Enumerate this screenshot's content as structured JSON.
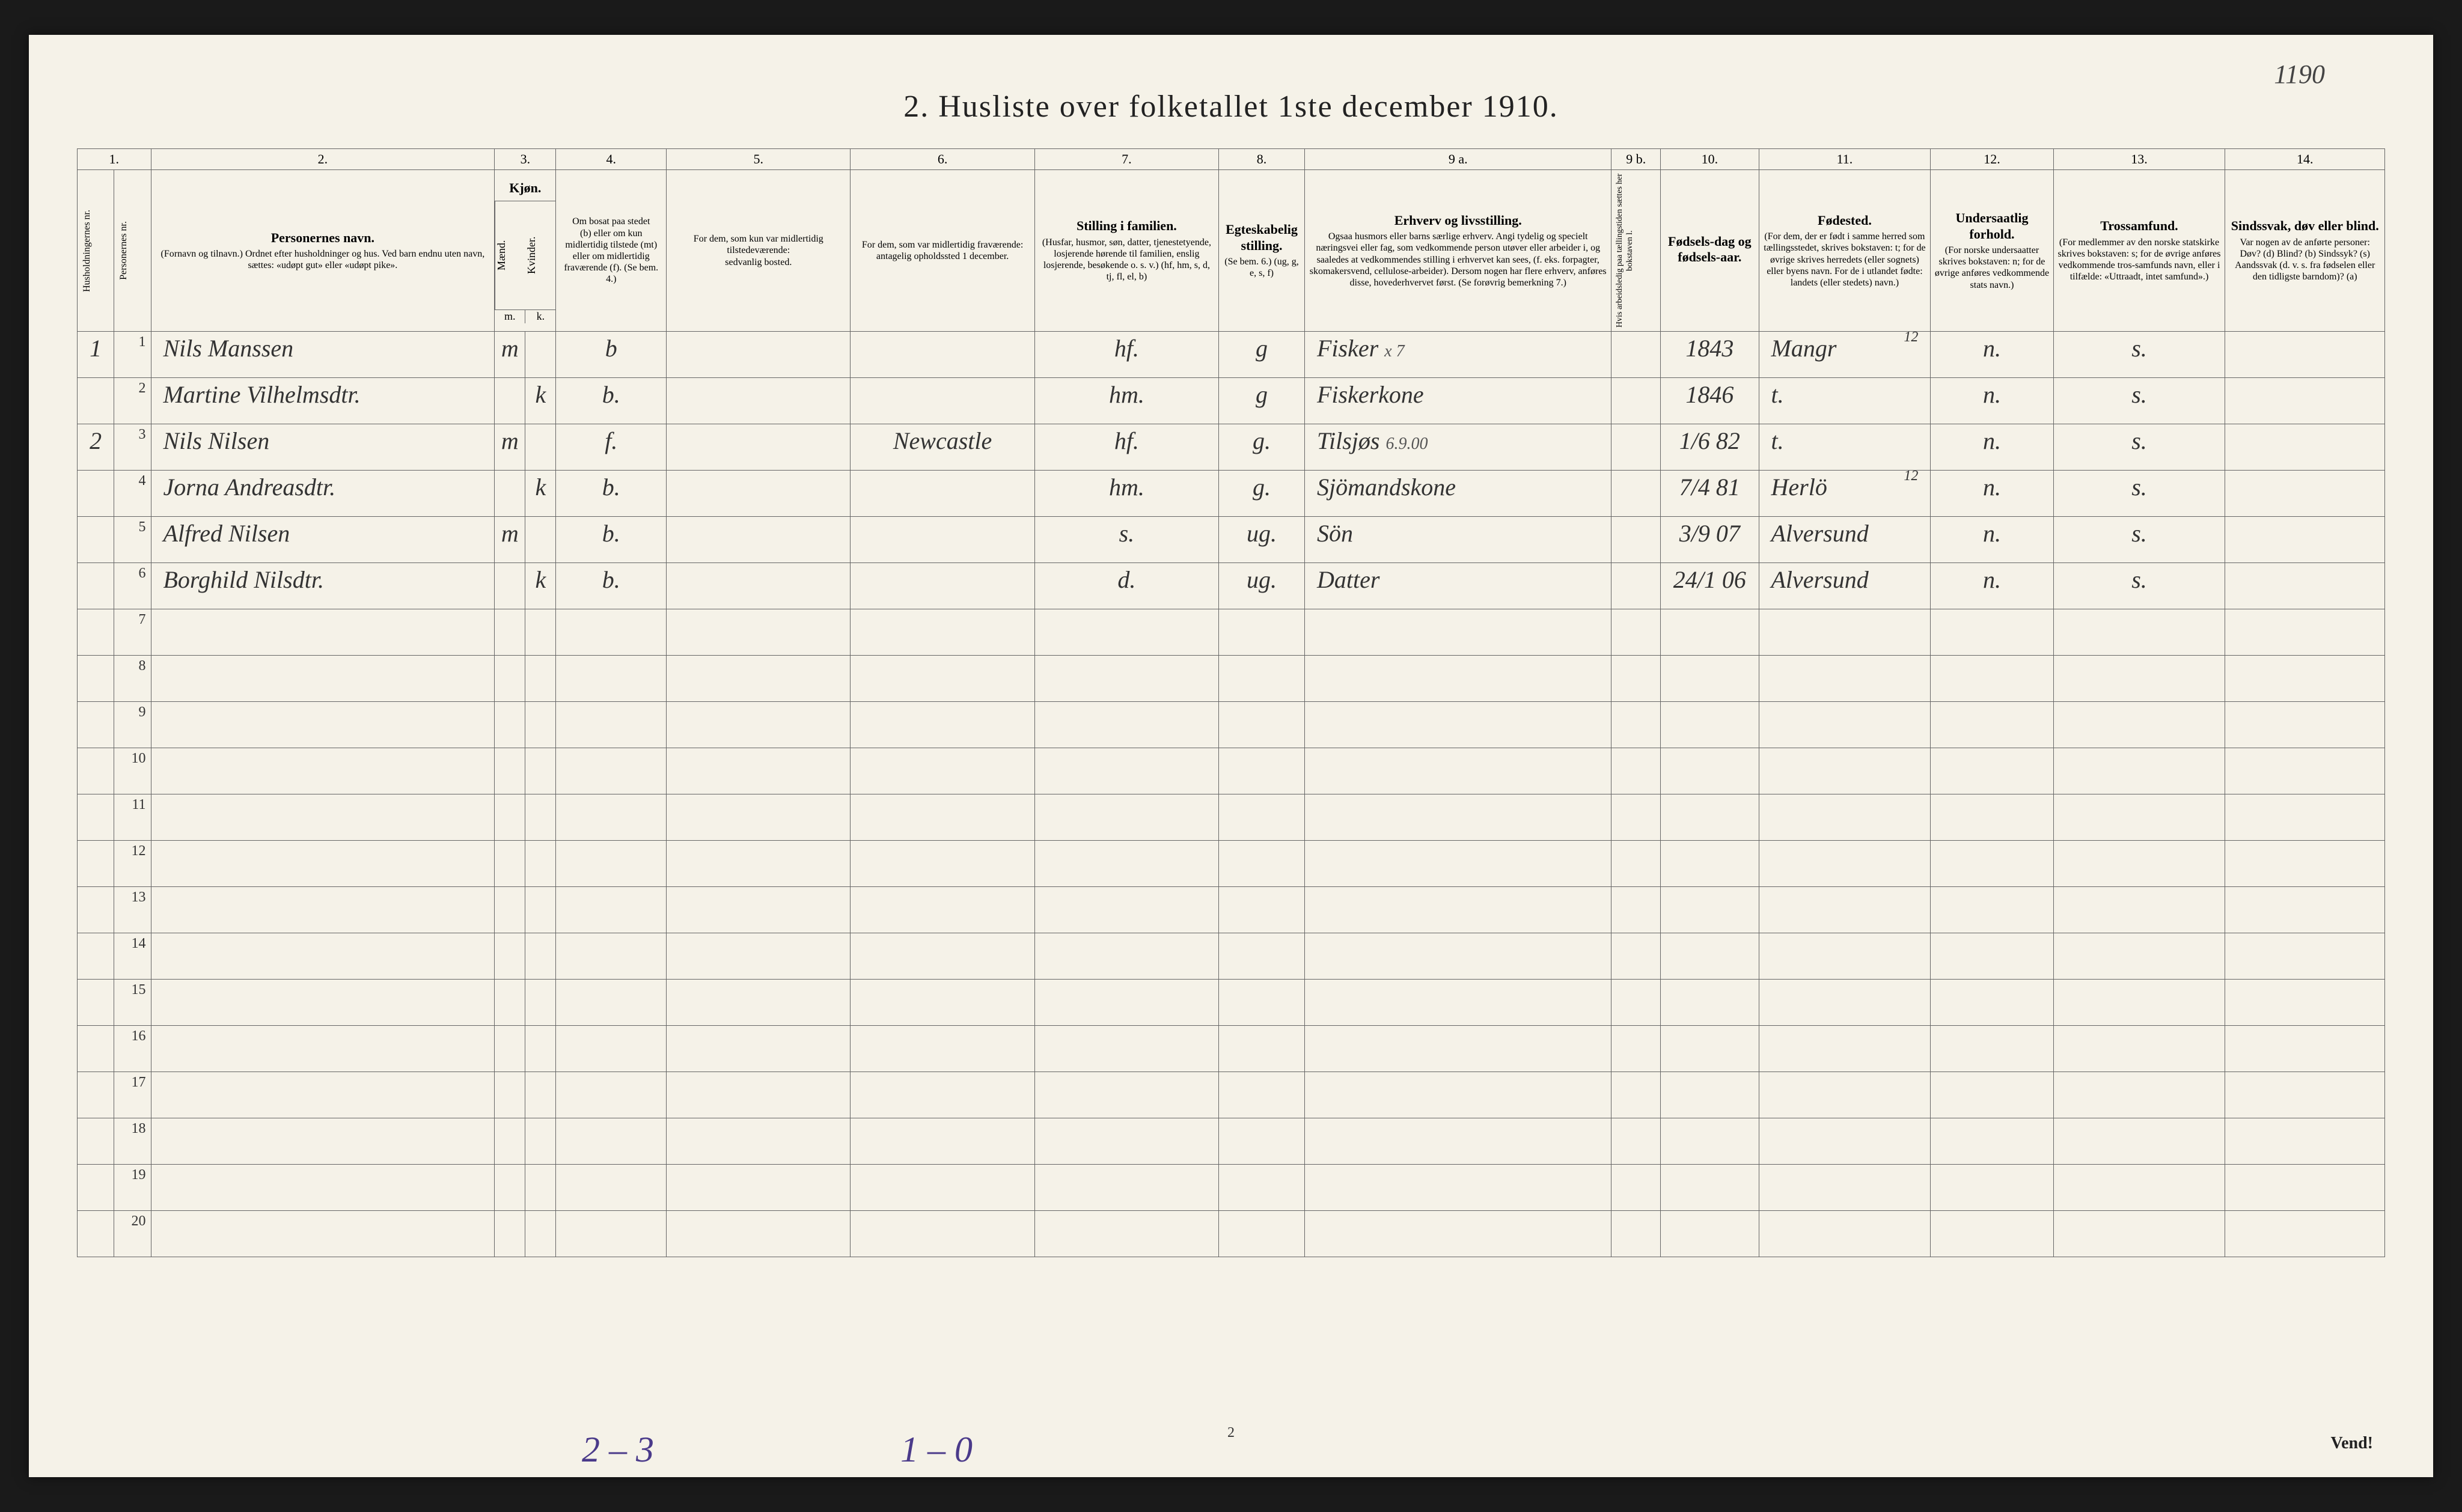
{
  "page_annotation_top_right": "1190",
  "title": "2.  Husliste over folketallet 1ste december 1910.",
  "column_numbers": [
    "1.",
    "",
    "2.",
    "3.",
    "4.",
    "5.",
    "6.",
    "7.",
    "8.",
    "9 a.",
    "9 b.",
    "10.",
    "11.",
    "12.",
    "13.",
    "14."
  ],
  "headers": {
    "c1": "Husholdningernes nr.",
    "c2": "Personernes nr.",
    "c3_main": "Personernes navn.",
    "c3_sub": "(Fornavn og tilnavn.)\nOrdnet efter husholdninger og hus.\nVed barn endnu uten navn, sættes: «udøpt gut» eller «udøpt pike».",
    "c4_main": "Kjøn.",
    "c4_sub": "Mænd. Kvinder.",
    "c4_mk": "m.  k.",
    "c5_main": "Om bosat paa stedet",
    "c5_sub": "(b) eller om kun midlertidig tilstede (mt) eller om midlertidig fraværende (f). (Se bem. 4.)",
    "c6_main": "For dem, som kun var midlertidig tilstedeværende:",
    "c6_sub": "sedvanlig bosted.",
    "c7_main": "For dem, som var midlertidig fraværende:",
    "c7_sub": "antagelig opholdssted 1 december.",
    "c8_main": "Stilling i familien.",
    "c8_sub": "(Husfar, husmor, søn, datter, tjenestetyende, losjerende hørende til familien, enslig losjerende, besøkende o. s. v.)\n(hf, hm, s, d, tj, fl, el, b)",
    "c9_main": "Egteskabelig stilling.",
    "c9_sub": "(Se bem. 6.)\n(ug, g, e, s, f)",
    "c10_main": "Erhverv og livsstilling.",
    "c10_sub": "Ogsaa husmors eller barns særlige erhverv. Angi tydelig og specielt næringsvei eller fag, som vedkommende person utøver eller arbeider i, og saaledes at vedkommendes stilling i erhvervet kan sees, (f. eks. forpagter, skomakersvend, cellulose-arbeider). Dersom nogen har flere erhverv, anføres disse, hovederhvervet først. (Se forøvrig bemerkning 7.)",
    "c11_main": "",
    "c11_sub": "Hvis arbeidsledig paa tællingstiden sættes her bokstaven l.",
    "c12_main": "Fødsels-dag og fødsels-aar.",
    "c13_main": "Fødested.",
    "c13_sub": "(For dem, der er født i samme herred som tællingsstedet, skrives bokstaven: t; for de øvrige skrives herredets (eller sognets) eller byens navn. For de i utlandet fødte: landets (eller stedets) navn.)",
    "c14_main": "Undersaatlig forhold.",
    "c14_sub": "(For norske undersaatter skrives bokstaven: n; for de øvrige anføres vedkommende stats navn.)",
    "c15_main": "Trossamfund.",
    "c15_sub": "(For medlemmer av den norske statskirke skrives bokstaven: s; for de øvrige anføres vedkommende tros-samfunds navn, eller i tilfælde: «Uttraadt, intet samfund».)",
    "c16_main": "Sindssvak, døv eller blind.",
    "c16_sub": "Var nogen av de anførte personer:\nDøv? (d)\nBlind? (b)\nSindssyk? (s)\nAandssvak (d. v. s. fra fødselen eller den tidligste barndom)? (a)"
  },
  "rows": [
    {
      "hh": "1",
      "pn": "1",
      "name": "Nils Manssen",
      "m": "m",
      "k": "",
      "bosat": "b",
      "c6": "",
      "c7": "",
      "stilling": "hf.",
      "egt": "g",
      "erhverv": "Fisker",
      "ann": "x 7",
      "c11": "",
      "fodsel": "1843",
      "fodested": "Mangr",
      "top_fodested": "12",
      "under": "n.",
      "tros": "s.",
      "c16": ""
    },
    {
      "hh": "",
      "pn": "2",
      "name": "Martine Vilhelmsdtr.",
      "m": "",
      "k": "k",
      "bosat": "b.",
      "c6": "",
      "c7": "",
      "stilling": "hm.",
      "egt": "g",
      "erhverv": "Fiskerkone",
      "ann": "",
      "c11": "",
      "fodsel": "1846",
      "fodested": "t.",
      "top_fodested": "",
      "under": "n.",
      "tros": "s.",
      "c16": ""
    },
    {
      "hh": "2",
      "pn": "3",
      "name": "Nils Nilsen",
      "m": "m",
      "k": "",
      "bosat": "f.",
      "c6": "",
      "c7": "Newcastle",
      "stilling": "hf.",
      "egt": "g.",
      "erhverv": "Tilsjøs",
      "ann": "6.9.00",
      "c11": "",
      "fodsel": "1/6 82",
      "fodested": "t.",
      "top_fodested": "",
      "under": "n.",
      "tros": "s.",
      "c16": ""
    },
    {
      "hh": "",
      "pn": "4",
      "name": "Jorna Andreasdtr.",
      "m": "",
      "k": "k",
      "bosat": "b.",
      "c6": "",
      "c7": "",
      "stilling": "hm.",
      "egt": "g.",
      "erhverv": "Sjömandskone",
      "ann": "",
      "c11": "",
      "fodsel": "7/4 81",
      "fodested": "Herlö",
      "top_fodested": "12",
      "under": "n.",
      "tros": "s.",
      "c16": ""
    },
    {
      "hh": "",
      "pn": "5",
      "name": "Alfred Nilsen",
      "m": "m",
      "k": "",
      "bosat": "b.",
      "c6": "",
      "c7": "",
      "stilling": "s.",
      "egt": "ug.",
      "erhverv": "Sön",
      "ann": "",
      "c11": "",
      "fodsel": "3/9 07",
      "fodested": "Alversund",
      "top_fodested": "",
      "under": "n.",
      "tros": "s.",
      "c16": ""
    },
    {
      "hh": "",
      "pn": "6",
      "name": "Borghild Nilsdtr.",
      "m": "",
      "k": "k",
      "bosat": "b.",
      "c6": "",
      "c7": "",
      "stilling": "d.",
      "egt": "ug.",
      "erhverv": "Datter",
      "ann": "",
      "c11": "",
      "fodsel": "24/1 06",
      "fodested": "Alversund",
      "top_fodested": "",
      "under": "n.",
      "tros": "s.",
      "c16": ""
    }
  ],
  "empty_rows": [
    "7",
    "8",
    "9",
    "10",
    "11",
    "12",
    "13",
    "14",
    "15",
    "16",
    "17",
    "18",
    "19",
    "20"
  ],
  "footer": {
    "left": "2 – 3",
    "mid": "1 – 0",
    "pagenum": "2",
    "right": "Vend!"
  },
  "colors": {
    "paper": "#f5f2e8",
    "ink": "#333333",
    "rule": "#666666",
    "pencil_purple": "#4a3a8a",
    "page_bg": "#1a1a1a"
  },
  "typography": {
    "title_fontsize_pt": 40,
    "header_fontsize_pt": 14,
    "handwriting_fontsize_pt": 30
  }
}
